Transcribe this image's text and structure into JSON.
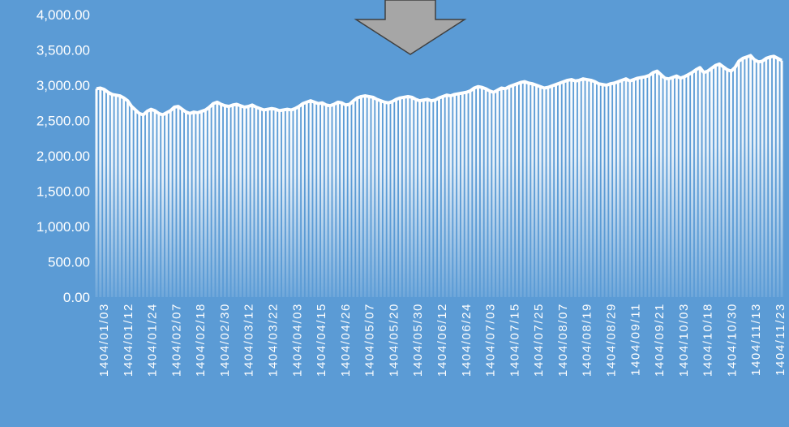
{
  "chart_data": {
    "type": "area",
    "title": "",
    "xlabel": "",
    "ylabel": "",
    "ylim": [
      0,
      4000
    ],
    "y_ticks": [
      "0.00",
      "500.00",
      "1,000.00",
      "1,500.00",
      "2,000.00",
      "2,500.00",
      "3,000.00",
      "3,500.00",
      "4,000.00"
    ],
    "x_tick_labels": [
      "1404/01/03",
      "1404/01/12",
      "1404/01/24",
      "1404/02/07",
      "1404/02/18",
      "1404/02/30",
      "1404/03/12",
      "1404/03/22",
      "1404/04/03",
      "1404/04/15",
      "1404/04/26",
      "1404/05/07",
      "1404/05/20",
      "1404/05/30",
      "1404/06/12",
      "1404/06/24",
      "1404/07/03",
      "1404/07/15",
      "1404/07/25",
      "1404/08/07",
      "1404/08/19",
      "1404/08/29",
      "1404/09/11",
      "1404/09/21",
      "1404/10/03",
      "1404/10/18",
      "1404/10/30",
      "1404/11/13",
      "1404/11/23"
    ],
    "grid": false,
    "legend": "none",
    "colors": {
      "background": "#5b9bd5",
      "line": "#ffffff",
      "fill": "#ffffff",
      "arrow": "#a6a6a6",
      "arrow_outline": "#404040"
    },
    "series": [
      {
        "values": [
          2950,
          2960,
          2940,
          2900,
          2870,
          2860,
          2850,
          2820,
          2780,
          2700,
          2650,
          2600,
          2580,
          2630,
          2660,
          2640,
          2600,
          2580,
          2610,
          2640,
          2690,
          2700,
          2660,
          2620,
          2600,
          2620,
          2610,
          2630,
          2650,
          2690,
          2740,
          2760,
          2730,
          2710,
          2700,
          2720,
          2730,
          2710,
          2690,
          2700,
          2720,
          2690,
          2670,
          2650,
          2660,
          2670,
          2660,
          2640,
          2650,
          2660,
          2650,
          2670,
          2700,
          2740,
          2760,
          2780,
          2760,
          2740,
          2750,
          2720,
          2710,
          2730,
          2760,
          2750,
          2720,
          2730,
          2780,
          2820,
          2840,
          2850,
          2840,
          2830,
          2800,
          2780,
          2760,
          2750,
          2770,
          2800,
          2820,
          2830,
          2840,
          2830,
          2800,
          2780,
          2790,
          2800,
          2780,
          2790,
          2820,
          2840,
          2860,
          2850,
          2870,
          2880,
          2890,
          2900,
          2920,
          2960,
          2980,
          2970,
          2950,
          2920,
          2900,
          2930,
          2960,
          2950,
          2980,
          3000,
          3020,
          3040,
          3050,
          3030,
          3020,
          3000,
          2980,
          2960,
          2970,
          2990,
          3010,
          3030,
          3050,
          3070,
          3080,
          3060,
          3070,
          3090,
          3080,
          3070,
          3050,
          3020,
          3010,
          3000,
          3020,
          3030,
          3050,
          3070,
          3090,
          3060,
          3080,
          3100,
          3110,
          3120,
          3140,
          3180,
          3200,
          3150,
          3100,
          3090,
          3110,
          3130,
          3100,
          3120,
          3150,
          3180,
          3220,
          3250,
          3180,
          3200,
          3240,
          3280,
          3300,
          3260,
          3220,
          3200,
          3250,
          3340,
          3380,
          3400,
          3420,
          3360,
          3330,
          3340,
          3380,
          3400,
          3410,
          3380,
          3350
        ]
      }
    ]
  }
}
